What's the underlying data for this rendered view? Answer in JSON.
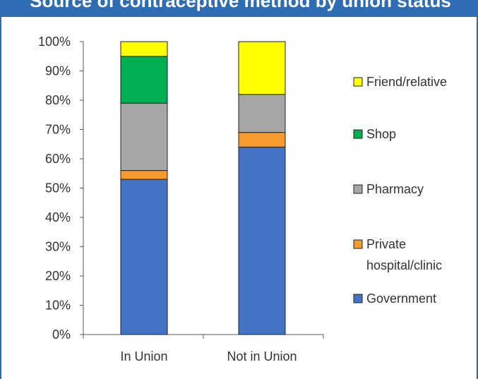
{
  "title_bar": {
    "text": "Source of contraceptive method by union status",
    "color": "#2e6db4"
  },
  "chart_data": {
    "type": "bar",
    "stacked": true,
    "title": "",
    "xlabel": "",
    "ylabel": "",
    "categories": [
      "In Union",
      "Not in Union"
    ],
    "ylim": [
      0,
      100
    ],
    "y_tick_labels": [
      "0%",
      "10%",
      "20%",
      "30%",
      "40%",
      "50%",
      "60%",
      "70%",
      "80%",
      "90%",
      "100%"
    ],
    "grid": false,
    "legend_position": "right",
    "series": [
      {
        "name": "Government",
        "values": [
          53,
          64
        ],
        "color": "#4472c4"
      },
      {
        "name": "Private hospital/clinic",
        "legend_lines": [
          "Private",
          "hospital/clinic"
        ],
        "values": [
          3,
          5
        ],
        "color": "#f79a2e"
      },
      {
        "name": "Pharmacy",
        "values": [
          23,
          13
        ],
        "color": "#a6a6a6"
      },
      {
        "name": "Shop",
        "values": [
          16,
          0
        ],
        "color": "#00b050"
      },
      {
        "name": "Friend/relative",
        "values": [
          5,
          18
        ],
        "color": "#ffff00"
      }
    ]
  }
}
